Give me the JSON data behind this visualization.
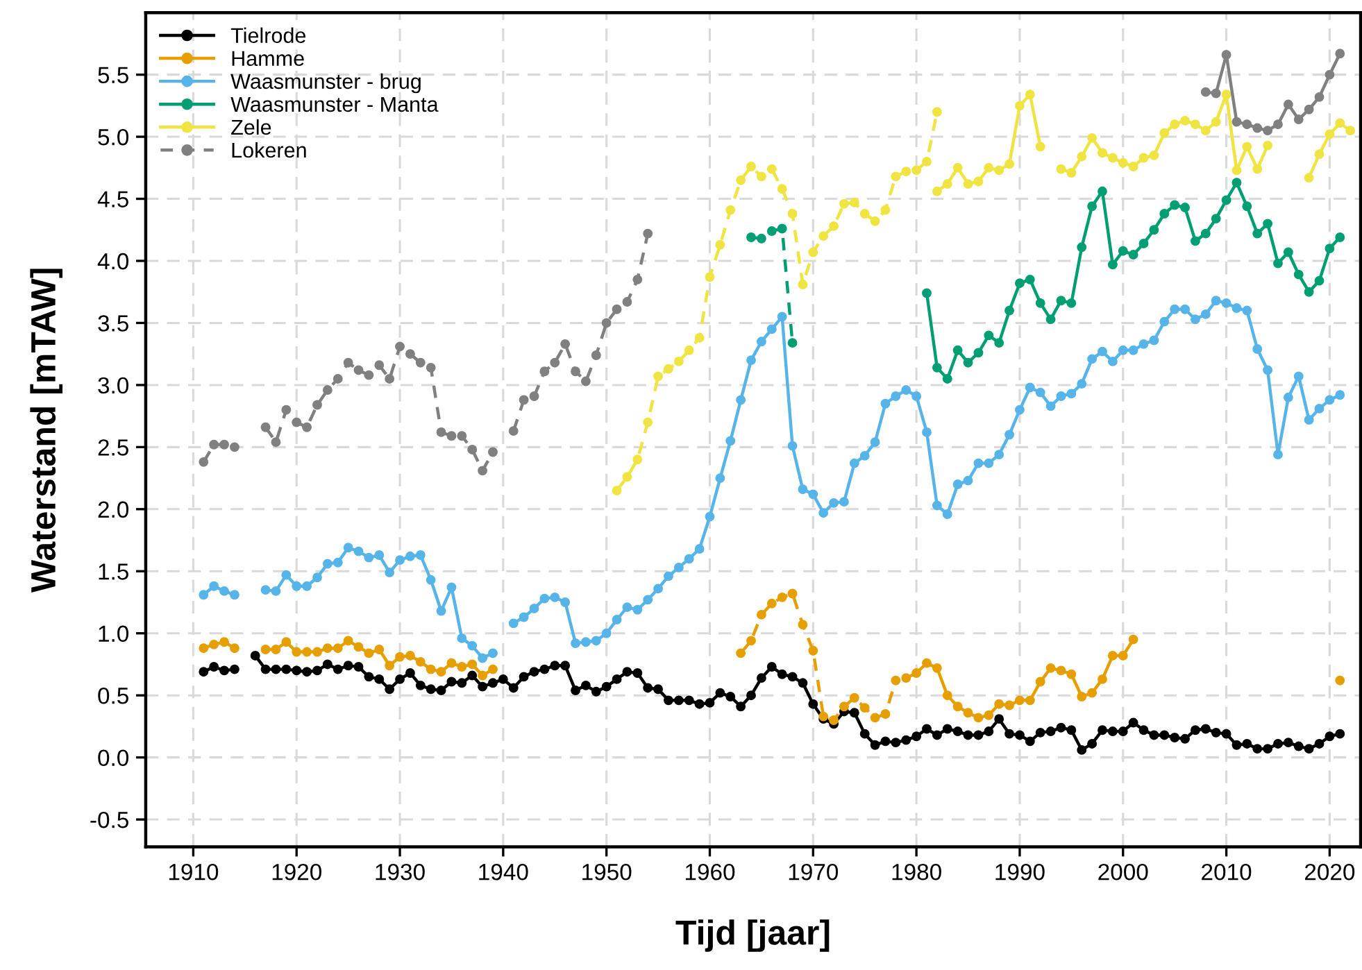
{
  "chart_data": {
    "type": "line",
    "xlabel": "Tijd [jaar]",
    "ylabel": "Waterstand [mTAW]",
    "xlim": [
      1905.4,
      2023
    ],
    "ylim": [
      -0.72,
      6.0
    ],
    "xticks": [
      1910,
      1920,
      1930,
      1940,
      1950,
      1960,
      1970,
      1980,
      1990,
      2000,
      2010,
      2020
    ],
    "yticks": [
      {
        "value": -0.5,
        "label": "-0.5"
      },
      {
        "value": 0,
        "label": "0.0"
      },
      {
        "value": 0.5,
        "label": "0.5"
      },
      {
        "value": 1,
        "label": "1.0"
      },
      {
        "value": 1.5,
        "label": "1.5"
      },
      {
        "value": 2,
        "label": "2.0"
      },
      {
        "value": 2.5,
        "label": "2.5"
      },
      {
        "value": 3,
        "label": "3.0"
      },
      {
        "value": 3.5,
        "label": "3.5"
      },
      {
        "value": 4,
        "label": "4.0"
      },
      {
        "value": 4.5,
        "label": "4.5"
      },
      {
        "value": 5,
        "label": "5.0"
      },
      {
        "value": 5.5,
        "label": "5.5"
      }
    ],
    "grid": true,
    "legend": "top left",
    "marker": "circle",
    "line_style": "solid",
    "series": [
      {
        "name": "Tielrode",
        "color": "#000000",
        "x": [
          1911,
          1912,
          1913,
          1914,
          1915,
          1916,
          1917,
          1918,
          1919,
          1920,
          1921,
          1922,
          1923,
          1924,
          1925,
          1926,
          1927,
          1928,
          1929,
          1930,
          1931,
          1932,
          1933,
          1934,
          1935,
          1936,
          1937,
          1938,
          1939,
          1940,
          1941,
          1942,
          1943,
          1944,
          1945,
          1946,
          1947,
          1948,
          1949,
          1950,
          1951,
          1952,
          1953,
          1954,
          1955,
          1956,
          1957,
          1958,
          1959,
          1960,
          1961,
          1962,
          1963,
          1964,
          1965,
          1966,
          1967,
          1968,
          1969,
          1970,
          1971,
          1972,
          1973,
          1974,
          1975,
          1976,
          1977,
          1978,
          1979,
          1980,
          1981,
          1982,
          1983,
          1984,
          1985,
          1986,
          1987,
          1988,
          1989,
          1990,
          1991,
          1992,
          1993,
          1994,
          1995,
          1996,
          1997,
          1998,
          1999,
          2000,
          2001,
          2002,
          2003,
          2004,
          2005,
          2006,
          2007,
          2008,
          2009,
          2010,
          2011,
          2012,
          2013,
          2014,
          2015,
          2016,
          2017,
          2018,
          2019,
          2020,
          2021
        ],
        "values": [
          0.69,
          0.73,
          0.7,
          0.71,
          null,
          0.82,
          0.71,
          0.71,
          0.71,
          0.7,
          0.69,
          0.7,
          0.75,
          0.71,
          0.74,
          0.73,
          0.65,
          0.63,
          0.55,
          0.63,
          0.68,
          0.58,
          0.55,
          0.54,
          0.61,
          0.6,
          0.66,
          0.57,
          0.6,
          0.63,
          0.56,
          0.65,
          0.69,
          0.71,
          0.74,
          0.74,
          0.54,
          0.58,
          0.53,
          0.57,
          0.63,
          0.69,
          0.68,
          0.56,
          0.55,
          0.46,
          0.46,
          0.46,
          0.43,
          0.44,
          0.52,
          0.49,
          0.41,
          0.5,
          0.64,
          0.73,
          0.67,
          0.65,
          0.6,
          0.43,
          0.31,
          0.27,
          0.37,
          0.36,
          0.19,
          0.1,
          0.13,
          0.12,
          0.14,
          0.17,
          0.23,
          0.18,
          0.23,
          0.21,
          0.18,
          0.18,
          0.21,
          0.31,
          0.19,
          0.18,
          0.13,
          0.2,
          0.21,
          0.24,
          0.22,
          0.06,
          0.11,
          0.22,
          0.21,
          0.21,
          0.28,
          0.22,
          0.18,
          0.18,
          0.16,
          0.15,
          0.22,
          0.23,
          0.2,
          0.19,
          0.1,
          0.11,
          0.07,
          0.07,
          0.11,
          0.12,
          0.09,
          0.07,
          0.11,
          0.17,
          0.19
        ]
      },
      {
        "name": "Hamme",
        "color": "#e69f00",
        "x": [
          1911,
          1912,
          1913,
          1914,
          1915,
          1916,
          1917,
          1918,
          1919,
          1920,
          1921,
          1922,
          1923,
          1924,
          1925,
          1926,
          1927,
          1928,
          1929,
          1930,
          1931,
          1932,
          1933,
          1934,
          1935,
          1936,
          1937,
          1938,
          1939
        ],
        "values": [
          0.88,
          0.91,
          0.93,
          0.88,
          null,
          null,
          0.87,
          0.87,
          0.93,
          0.85,
          0.85,
          0.85,
          0.88,
          0.88,
          0.94,
          0.89,
          0.84,
          0.87,
          0.74,
          0.81,
          0.82,
          0.77,
          0.71,
          0.69,
          0.76,
          0.73,
          0.75,
          0.66,
          0.71
        ]
      },
      {
        "name": "Waasmunster - brug",
        "color": "#56b4e9",
        "x": [
          1911,
          1912,
          1913,
          1914,
          1915,
          1916,
          1917,
          1918,
          1919,
          1920,
          1921,
          1922,
          1923,
          1924,
          1925,
          1926,
          1927,
          1928,
          1929,
          1930,
          1931,
          1932,
          1933,
          1934,
          1935,
          1936,
          1937,
          1938,
          1939,
          1940,
          1941,
          1942,
          1943,
          1944,
          1945,
          1946,
          1947,
          1948,
          1949,
          1950,
          1951,
          1952,
          1953,
          1954,
          1955,
          1956,
          1957,
          1958,
          1959,
          1960,
          1961,
          1962,
          1963,
          1964,
          1965,
          1966,
          1967,
          1968,
          1969,
          1970,
          1971,
          1972,
          1973,
          1974,
          1975,
          1976,
          1977,
          1978,
          1979,
          1980,
          1981,
          1982,
          1983,
          1984,
          1985,
          1986,
          1987,
          1988,
          1989,
          1990,
          1991,
          1992,
          1993,
          1994,
          1995,
          1996,
          1997,
          1998,
          1999,
          2000,
          2001,
          2002,
          2003,
          2004,
          2005,
          2006,
          2007,
          2008,
          2009,
          2010,
          2011,
          2012,
          2013,
          2014,
          2015,
          2016,
          2017,
          2018,
          2019,
          2020,
          2021
        ],
        "values": [
          1.31,
          1.38,
          1.34,
          1.31,
          null,
          null,
          1.35,
          1.34,
          1.47,
          1.38,
          1.38,
          1.45,
          1.56,
          1.57,
          1.69,
          1.66,
          1.61,
          1.63,
          1.49,
          1.59,
          1.62,
          1.63,
          1.43,
          1.18,
          1.37,
          0.96,
          0.9,
          0.8,
          0.84,
          null,
          1.08,
          1.13,
          1.2,
          1.28,
          1.29,
          1.25,
          0.92,
          0.93,
          0.94,
          1.0,
          1.11,
          1.21,
          1.19,
          1.27,
          1.36,
          1.46,
          1.53,
          1.6,
          1.68,
          1.94,
          2.25,
          2.55,
          2.88,
          3.2,
          3.35,
          3.45,
          3.55,
          2.51,
          2.16,
          2.12,
          1.97,
          2.05,
          2.06,
          2.37,
          2.43,
          2.54,
          2.85,
          2.91,
          2.96,
          2.91,
          2.62,
          2.03,
          1.96,
          2.2,
          2.23,
          2.37,
          2.37,
          2.44,
          2.6,
          2.8,
          2.98,
          2.94,
          2.83,
          2.91,
          2.93,
          3.01,
          3.21,
          3.27,
          3.19,
          3.28,
          3.28,
          3.33,
          3.36,
          3.51,
          3.61,
          3.61,
          3.53,
          3.57,
          3.68,
          3.66,
          3.62,
          3.6,
          3.29,
          3.12,
          2.44,
          2.9,
          3.07,
          2.72,
          2.81,
          2.88,
          2.92
        ]
      },
      {
        "name": "Waasmunster - Manta",
        "color": "#009e73",
        "x": [
          1981,
          1982,
          1983,
          1984,
          1985,
          1986,
          1987,
          1988,
          1989,
          1990,
          1991,
          1992,
          1993,
          1994,
          1995,
          1996,
          1997,
          1998,
          1999,
          2000,
          2001,
          2002,
          2003,
          2004,
          2005,
          2006,
          2007,
          2008,
          2009,
          2010,
          2011,
          2012,
          2013,
          2014,
          2015,
          2016,
          2017,
          2018,
          2019,
          2020,
          2021
        ],
        "values": [
          3.74,
          3.14,
          3.05,
          3.28,
          3.18,
          3.26,
          3.4,
          3.34,
          3.6,
          3.82,
          3.85,
          3.66,
          3.53,
          3.68,
          3.66,
          4.11,
          4.44,
          4.56,
          3.97,
          4.08,
          4.05,
          4.14,
          4.25,
          4.38,
          4.45,
          4.43,
          4.16,
          4.22,
          4.34,
          4.49,
          4.63,
          4.44,
          4.22,
          4.3,
          3.98,
          4.07,
          3.89,
          3.75,
          3.84,
          4.1,
          4.19
        ]
      },
      {
        "name": "Zele",
        "color": "#f0e442",
        "x": [
          1982,
          1983,
          1984,
          1985,
          1986,
          1987,
          1988,
          1989,
          1990,
          1991,
          1992,
          1993,
          1994,
          1995,
          1996,
          1997,
          1998,
          1999,
          2000,
          2001,
          2002,
          2003,
          2004,
          2005,
          2006,
          2007,
          2008,
          2009,
          2010,
          2011,
          2012,
          2013,
          2014,
          2015,
          2016,
          2017,
          2018,
          2019,
          2020,
          2021,
          2022
        ],
        "values": [
          4.56,
          4.62,
          4.75,
          4.62,
          4.64,
          4.75,
          4.73,
          4.78,
          5.25,
          5.34,
          4.92,
          null,
          4.74,
          4.71,
          4.84,
          4.99,
          4.87,
          4.83,
          4.79,
          4.76,
          4.83,
          4.85,
          5.03,
          5.1,
          5.13,
          5.1,
          5.05,
          5.12,
          5.34,
          4.73,
          4.92,
          4.74,
          4.93,
          null,
          null,
          null,
          4.67,
          4.86,
          5.02,
          5.11,
          5.05
        ]
      },
      {
        "name": "Lokeren",
        "color": "#808080",
        "line_style": "dashed",
        "x": [
          1911,
          1912,
          1913,
          1914,
          1915,
          1916,
          1917,
          1918,
          1919,
          1920,
          1921,
          1922,
          1923,
          1924,
          1925,
          1926,
          1927,
          1928,
          1929,
          1930,
          1931,
          1932,
          1933,
          1934,
          1935,
          1936,
          1937,
          1938,
          1939,
          1940,
          1941,
          1942,
          1943,
          1944,
          1945,
          1946,
          1947,
          1948,
          1949,
          1950,
          1951,
          1952,
          1953,
          1954
        ],
        "values": [
          2.38,
          2.52,
          2.52,
          2.5,
          null,
          null,
          2.66,
          2.54,
          2.8,
          2.7,
          2.66,
          2.84,
          2.96,
          3.05,
          3.18,
          3.12,
          3.08,
          3.16,
          3.05,
          3.31,
          3.25,
          3.18,
          3.14,
          2.62,
          2.59,
          2.59,
          2.48,
          2.31,
          2.46,
          null,
          2.63,
          2.88,
          2.91,
          3.11,
          3.18,
          3.33,
          3.11,
          3.03,
          3.24,
          3.5,
          3.61,
          3.67,
          3.85,
          4.22
        ]
      },
      {
        "color": "#e69f00",
        "line_style": "dashed",
        "x": [
          1963,
          1964,
          1965,
          1966,
          1967,
          1968,
          1969,
          1970,
          1971,
          1972,
          1973,
          1974,
          1975,
          1976,
          1977,
          1978
        ],
        "values": [
          0.84,
          0.94,
          1.15,
          1.24,
          1.29,
          1.32,
          1.07,
          0.86,
          0.33,
          0.3,
          0.41,
          0.48,
          0.4,
          0.32,
          0.35,
          0.62
        ]
      },
      {
        "color": "#e69f00",
        "x": [
          1979,
          1980,
          1981,
          1982,
          1983,
          1984,
          1985,
          1986,
          1987,
          1988,
          1989,
          1990,
          1991,
          1992,
          1993,
          1994,
          1995,
          1996,
          1997,
          1998,
          1999,
          2000,
          2001,
          2011,
          2021
        ],
        "values": [
          0.64,
          0.68,
          0.76,
          0.72,
          0.5,
          0.41,
          0.36,
          0.32,
          0.34,
          0.43,
          0.42,
          0.46,
          0.46,
          0.61,
          0.72,
          0.7,
          0.67,
          0.49,
          0.52,
          0.63,
          0.82,
          0.82,
          0.95,
          null,
          0.62
        ]
      },
      {
        "color": "#009e73",
        "line_style": "dashed",
        "x": [
          1964,
          1965,
          1966,
          1967,
          1968
        ],
        "values": [
          4.19,
          4.18,
          4.24,
          4.26,
          3.34
        ]
      },
      {
        "color": "#f0e442",
        "line_style": "dashed",
        "x": [
          1951,
          1952,
          1953,
          1954,
          1955,
          1956,
          1957,
          1958,
          1959,
          1960,
          1961,
          1962,
          1963,
          1964,
          1965,
          1966,
          1967,
          1968,
          1969,
          1970,
          1971,
          1972,
          1973,
          1974,
          1975,
          1976,
          1977,
          1978,
          1979,
          1980,
          1981,
          1982
        ],
        "values": [
          2.15,
          2.26,
          2.4,
          2.7,
          3.07,
          3.13,
          3.19,
          3.28,
          3.38,
          3.87,
          4.13,
          4.41,
          4.65,
          4.76,
          4.68,
          4.74,
          4.58,
          4.38,
          3.81,
          4.07,
          4.2,
          4.28,
          4.46,
          4.47,
          4.38,
          4.32,
          4.41,
          4.68,
          4.72,
          4.73,
          4.8,
          5.2
        ]
      },
      {
        "color": "#808080",
        "x": [
          2008,
          2009,
          2010,
          2011,
          2012,
          2013,
          2014,
          2015,
          2016,
          2017,
          2018,
          2019,
          2020,
          2021
        ],
        "values": [
          5.36,
          5.35,
          5.66,
          5.12,
          5.1,
          5.07,
          5.05,
          5.1,
          5.26,
          5.14,
          5.22,
          5.32,
          5.5,
          5.67
        ]
      }
    ]
  }
}
